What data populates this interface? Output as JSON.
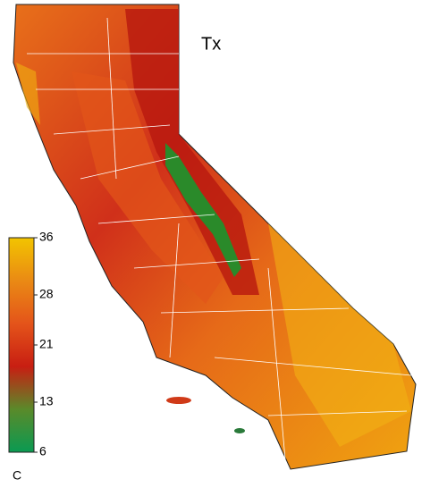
{
  "title": "Tx",
  "colorbar": {
    "lim": [
      6,
      36
    ],
    "ticks": [
      36,
      28,
      21,
      13,
      6
    ],
    "unit": "C",
    "colors": [
      "#0a9a52",
      "#5a8a2a",
      "#c81e12",
      "#e4541a",
      "#ea8a14",
      "#f2c400"
    ]
  }
}
